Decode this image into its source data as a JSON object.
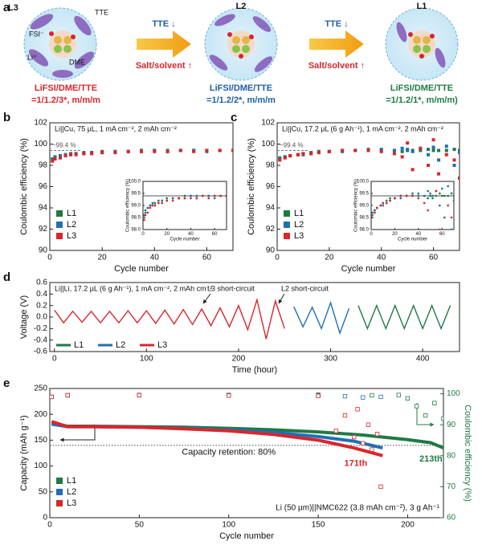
{
  "panel_a": {
    "panel_label": "a",
    "electrolytes": [
      {
        "name": "L3",
        "formula": "LiFSI/DME/TTE",
        "ratio": "=1/1.2/3*, m/m/m"
      },
      {
        "name": "L2",
        "formula": "LiFSI/DME/TTE",
        "ratio": "=1/1.2/2*, m/m/m"
      },
      {
        "name": "L1",
        "formula": "LiFSI/DME/TTE",
        "ratio": "=1/1.2/1*, m/m/m)"
      }
    ],
    "species": {
      "tte": "TTE",
      "fsi": "FSI⁻",
      "li": "Li⁺",
      "dme": "DME"
    },
    "arrows": [
      {
        "top": "TTE ↓",
        "bottom": "Salt/solvent ↑"
      },
      {
        "top": "TTE ↓",
        "bottom": "Salt/solvent ↑"
      }
    ]
  },
  "chart_data": [
    {
      "type": "scatter",
      "panel_label": "b",
      "xlabel": "Cycle number",
      "ylabel": "Coulombic efficiency (%)",
      "annotations": [
        "Li||Cu, 75 µL, 1 mA cm⁻², 2 mAh cm⁻²"
      ],
      "xlim": [
        0,
        70
      ],
      "xticks": [
        0,
        20,
        40,
        60
      ],
      "ylim": [
        90,
        102
      ],
      "yticks": [
        90,
        92,
        94,
        96,
        98,
        100,
        102
      ],
      "reference_line": {
        "value": 99.4,
        "label": "~99.4 %"
      },
      "legend": "lower left",
      "series": [
        {
          "name": "L1",
          "color": "#1f7a45",
          "x": [
            1,
            2,
            4,
            6,
            8,
            10,
            13,
            16,
            20,
            25,
            30,
            35,
            40,
            45,
            50,
            55,
            60,
            65,
            70
          ],
          "values": [
            98.6,
            98.8,
            98.9,
            99.0,
            99.1,
            99.1,
            99.2,
            99.2,
            99.3,
            99.3,
            99.3,
            99.4,
            99.4,
            99.3,
            99.4,
            99.4,
            99.4,
            99.4,
            99.4
          ]
        },
        {
          "name": "L2",
          "color": "#1f6fb5",
          "x": [
            1,
            2,
            4,
            6,
            8,
            10,
            13,
            16,
            20,
            25,
            30,
            35,
            40,
            45,
            50,
            55,
            60,
            65,
            70
          ],
          "values": [
            98.5,
            98.7,
            98.9,
            99.0,
            99.0,
            99.1,
            99.1,
            99.2,
            99.2,
            99.3,
            99.3,
            99.3,
            99.4,
            99.4,
            99.4,
            99.4,
            99.3,
            99.4,
            99.4
          ]
        },
        {
          "name": "L3",
          "color": "#d9262c",
          "x": [
            1,
            2,
            4,
            6,
            8,
            10,
            13,
            16,
            20,
            25,
            30,
            35,
            40,
            45,
            50,
            55,
            60,
            65,
            70
          ],
          "values": [
            98.4,
            98.6,
            98.7,
            98.9,
            99.0,
            99.0,
            99.1,
            99.1,
            99.2,
            99.2,
            99.3,
            99.3,
            99.3,
            99.3,
            99.4,
            99.3,
            99.4,
            99.4,
            99.4
          ]
        }
      ],
      "inset": {
        "xlabel": "Cycle number",
        "ylabel": "Coulombic efficiency (%)",
        "xlim": [
          0,
          70
        ],
        "xticks": [
          0,
          20,
          40,
          60
        ],
        "ylim": [
          98,
          100
        ],
        "yticks": [
          {
            "value": 98,
            "label": "98.0"
          },
          98.5,
          {
            "value": 99,
            "label": "99.0"
          },
          99.5,
          {
            "value": 100,
            "label": "100.0"
          }
        ],
        "reference_line": {
          "value": 99.4
        }
      }
    },
    {
      "type": "scatter",
      "panel_label": "c",
      "xlabel": "Cycle number",
      "ylabel": "Coulombic efficiency (%)",
      "annotations": [
        "Li||Cu, 17.2 µL (6 g Ah⁻¹), 1 mA cm⁻², 2 mAh cm⁻²"
      ],
      "xlim": [
        0,
        70
      ],
      "xticks": [
        0,
        20,
        40,
        60
      ],
      "ylim": [
        90,
        102
      ],
      "yticks": [
        90,
        92,
        94,
        96,
        98,
        100,
        102
      ],
      "reference_line": {
        "value": 99.4,
        "label": "~99.4 %"
      },
      "legend": "lower left",
      "series": [
        {
          "name": "L1",
          "color": "#1f7a45",
          "x": [
            1,
            3,
            5,
            8,
            10,
            13,
            16,
            20,
            25,
            30,
            35,
            40,
            45,
            48,
            50,
            52,
            55,
            58,
            60,
            62,
            65,
            68,
            70
          ],
          "values": [
            98.7,
            98.8,
            98.9,
            99.0,
            99.1,
            99.2,
            99.3,
            99.3,
            99.4,
            99.4,
            99.4,
            99.4,
            99.4,
            99.3,
            99.4,
            99.4,
            99.4,
            99.5,
            99.4,
            99.4,
            99.4,
            99.5,
            99.4
          ]
        },
        {
          "name": "L2",
          "color": "#1f6fb5",
          "x": [
            1,
            3,
            5,
            8,
            10,
            13,
            16,
            20,
            25,
            30,
            35,
            40,
            45,
            48,
            50,
            52,
            55,
            58,
            60,
            62,
            65,
            68,
            70
          ],
          "values": [
            98.6,
            98.8,
            98.9,
            99.0,
            99.0,
            99.1,
            99.2,
            99.3,
            99.3,
            99.4,
            99.5,
            99.5,
            99.4,
            99.6,
            99.5,
            99.3,
            99.6,
            99.0,
            99.7,
            98.5,
            99.8,
            98.0,
            99.2
          ]
        },
        {
          "name": "L3",
          "color": "#d9262c",
          "x": [
            1,
            3,
            5,
            8,
            10,
            13,
            16,
            20,
            25,
            30,
            35,
            40,
            45,
            48,
            50,
            52,
            55,
            58,
            60,
            62,
            65,
            68,
            70
          ],
          "values": [
            98.5,
            98.7,
            98.9,
            99.0,
            99.1,
            99.1,
            99.2,
            99.3,
            99.4,
            99.4,
            99.4,
            99.3,
            99.1,
            98.8,
            100.1,
            97.6,
            99.6,
            98.0,
            100.4,
            97.2,
            99.0,
            98.5,
            96.8
          ]
        }
      ],
      "inset": {
        "xlabel": "Cycle number",
        "ylabel": "Coulombic efficiency (%)",
        "xlim": [
          0,
          70
        ],
        "xticks": [
          0,
          20,
          40,
          60
        ],
        "ylim": [
          98,
          100
        ],
        "yticks": [
          {
            "value": 98,
            "label": "98.0"
          },
          98.5,
          {
            "value": 99,
            "label": "99.0"
          },
          99.5,
          {
            "value": 100,
            "label": "100.0"
          }
        ],
        "reference_line": {
          "value": 99.4
        }
      }
    },
    {
      "type": "line",
      "panel_label": "d",
      "xlabel": "Time (hour)",
      "ylabel": "Voltage (V)",
      "annotations": [
        "Li||Li, 17.2 µL (6 g Ah⁻¹), 1 mA cm⁻², 2 mAh cm⁻²",
        "L3 short-circuit",
        "L2 short-circuit"
      ],
      "xlim": [
        -5,
        440
      ],
      "xticks": [
        0,
        100,
        200,
        300,
        400
      ],
      "ylim": [
        -0.6,
        0.6
      ],
      "yticks": [
        -0.6,
        -0.4,
        -0.2,
        {
          "value": 0,
          "label": "0.0"
        },
        0.2,
        0.4,
        0.6
      ],
      "legend": "lower left",
      "legend_orientation": "horizontal",
      "series": [
        {
          "name": "L1",
          "color": "#1f7a45",
          "x": [
            330,
            340,
            350,
            360,
            370,
            380,
            390,
            400,
            410,
            420,
            430
          ],
          "values": [
            0.2,
            -0.2,
            0.2,
            -0.2,
            0.2,
            -0.2,
            0.2,
            -0.2,
            0.2,
            -0.2,
            0.2
          ]
        },
        {
          "name": "L2",
          "color": "#1f6fb5",
          "x": [
            260,
            270,
            280,
            290,
            300,
            310,
            320
          ],
          "values": [
            0.18,
            -0.17,
            0.17,
            -0.2,
            0.25,
            -0.28,
            0.15
          ]
        },
        {
          "name": "L3",
          "color": "#d9262c",
          "x": [
            0,
            10,
            20,
            30,
            40,
            50,
            60,
            70,
            80,
            90,
            100,
            110,
            120,
            130,
            140,
            150,
            160,
            170,
            180,
            190,
            200,
            210,
            220,
            230,
            240,
            250
          ],
          "values": [
            0.12,
            -0.1,
            0.1,
            -0.09,
            0.1,
            -0.1,
            0.1,
            -0.1,
            0.11,
            -0.1,
            0.11,
            -0.11,
            0.12,
            -0.12,
            0.13,
            -0.13,
            0.14,
            -0.15,
            0.16,
            -0.17,
            0.2,
            -0.22,
            0.3,
            -0.38,
            0.28,
            -0.2
          ]
        }
      ]
    },
    {
      "type": "line",
      "panel_label": "e",
      "xlabel": "Cycle number",
      "ylabel": "Capacity (mAh g⁻¹)",
      "y2label": "Coulombic efficiency (%)",
      "annotations": [
        "Capacity retention: 80%",
        "171th",
        "213th",
        "Li (50 µm)||NMC622 (3.8 mAh cm⁻²), 3 g Ah⁻¹"
      ],
      "xlim": [
        0,
        220
      ],
      "xticks": [
        0,
        50,
        100,
        150,
        200
      ],
      "ylim": [
        0,
        250
      ],
      "yticks": [
        0,
        50,
        100,
        150,
        200,
        250
      ],
      "y2lim": [
        60,
        101.7
      ],
      "y2ticks": [
        60,
        70,
        80,
        90,
        100
      ],
      "y2_color": "#1f7a45",
      "reference_line": {
        "value": 140
      },
      "legend": "lower left",
      "series": [
        {
          "name": "L1",
          "color": "#1f7a45",
          "x": [
            1,
            10,
            25,
            50,
            75,
            100,
            125,
            150,
            175,
            200,
            213,
            220
          ],
          "values": [
            182,
            177,
            177,
            176,
            175,
            173,
            170,
            166,
            160,
            151,
            145,
            135
          ]
        },
        {
          "name": "L2",
          "color": "#1f6fb5",
          "x": [
            1,
            10,
            25,
            50,
            75,
            100,
            125,
            150,
            170,
            186
          ],
          "values": [
            181,
            176,
            176,
            175,
            173,
            170,
            165,
            157,
            148,
            135
          ]
        },
        {
          "name": "L3",
          "color": "#d9262c",
          "x": [
            1,
            10,
            25,
            50,
            75,
            100,
            125,
            150,
            170,
            186
          ],
          "values": [
            186,
            176,
            176,
            175,
            172,
            168,
            161,
            150,
            135,
            120
          ]
        },
        {
          "color": "#1f7a45",
          "axis": "y2",
          "marker": "open-square",
          "x": [
            1,
            10,
            50,
            100,
            150,
            180,
            195,
            200,
            205,
            210,
            215,
            220
          ],
          "values": [
            99,
            99.5,
            99.6,
            99.6,
            99.7,
            99.5,
            99.6,
            98.5,
            96,
            93,
            97,
            92
          ]
        },
        {
          "color": "#1f6fb5",
          "axis": "y2",
          "marker": "open-square",
          "x": [
            1,
            10,
            50,
            100,
            150,
            165,
            175,
            185
          ],
          "values": [
            99,
            99.5,
            99.5,
            99.6,
            99.5,
            99.2,
            98.8,
            99.0
          ]
        },
        {
          "color": "#d9262c",
          "axis": "y2",
          "marker": "open-square",
          "x": [
            1,
            10,
            50,
            100,
            150,
            160,
            165,
            170,
            172,
            175,
            178,
            180,
            183,
            185
          ],
          "values": [
            99,
            99.5,
            99.5,
            99.4,
            99.3,
            88,
            93,
            86,
            95,
            84,
            90,
            82,
            87,
            70
          ]
        }
      ]
    }
  ]
}
